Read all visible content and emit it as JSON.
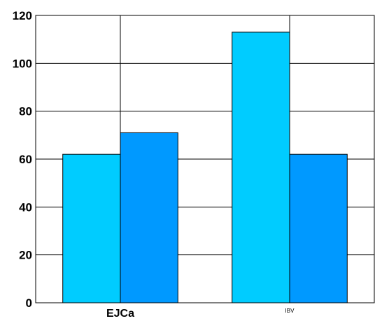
{
  "chart_data": {
    "type": "bar",
    "categories": [
      "EJCa",
      "IBV"
    ],
    "series": [
      {
        "values": [
          62,
          113
        ],
        "color": "#00ccff"
      },
      {
        "values": [
          71,
          62
        ],
        "color": "#0099ff"
      }
    ],
    "ylim": [
      0,
      120
    ],
    "yticks": [
      "0",
      "20",
      "40",
      "60",
      "80",
      "100",
      "120"
    ],
    "grid": true,
    "legend": "none"
  }
}
